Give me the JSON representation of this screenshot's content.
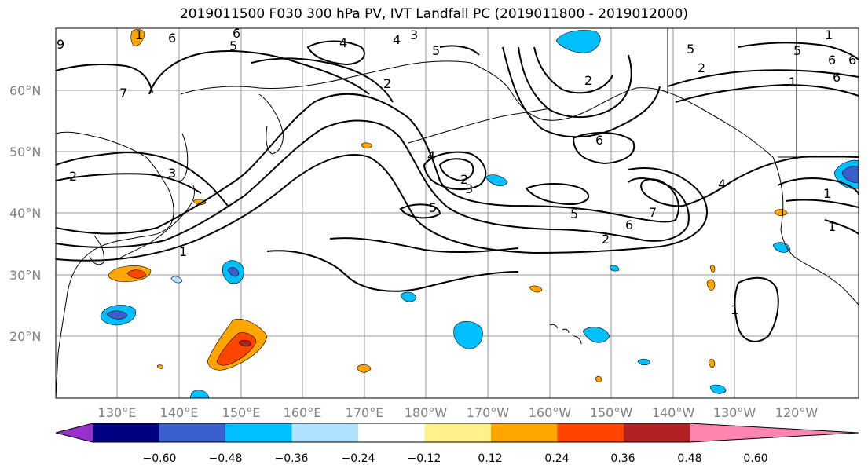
{
  "title": "2019011500 F030 300 hPa PV, IVT Landfall PC (2019011800 - 2019012000)",
  "lat_labels": [
    "60°N",
    "50°N",
    "40°N",
    "30°N",
    "20°N"
  ],
  "lon_labels": [
    "130°E",
    "140°E",
    "150°E",
    "160°E",
    "170°E",
    "180°W",
    "170°W",
    "160°W",
    "150°W",
    "140°W",
    "130°W",
    "120°W"
  ],
  "colorbar": {
    "colors": [
      "#9932cc",
      "#000080",
      "#3a5fcd",
      "#00bfff",
      "#b0e2ff",
      "#ffffff",
      "#fff08c",
      "#ffa500",
      "#ff4500",
      "#b22222",
      "#ff85b0"
    ],
    "tick_labels": [
      "−0.60",
      "−0.48",
      "−0.36",
      "−0.24",
      "−0.12",
      "0.12",
      "0.24",
      "0.36",
      "0.48",
      "0.60"
    ]
  },
  "contour_labels": [
    "6",
    "5",
    "4",
    "3",
    "2",
    "1",
    "7",
    "6",
    "5",
    "4",
    "3",
    "2",
    "1",
    "5",
    "6",
    "5",
    "2",
    "3",
    "1",
    "6",
    "7",
    "6",
    "5",
    "4",
    "2",
    "4",
    "1",
    "2",
    "1",
    "5",
    "6",
    "2",
    "1",
    "9",
    "6",
    "1"
  ],
  "legend_colors": {
    "contour": "#000000",
    "grid": "#999999",
    "coast": "#000000"
  }
}
